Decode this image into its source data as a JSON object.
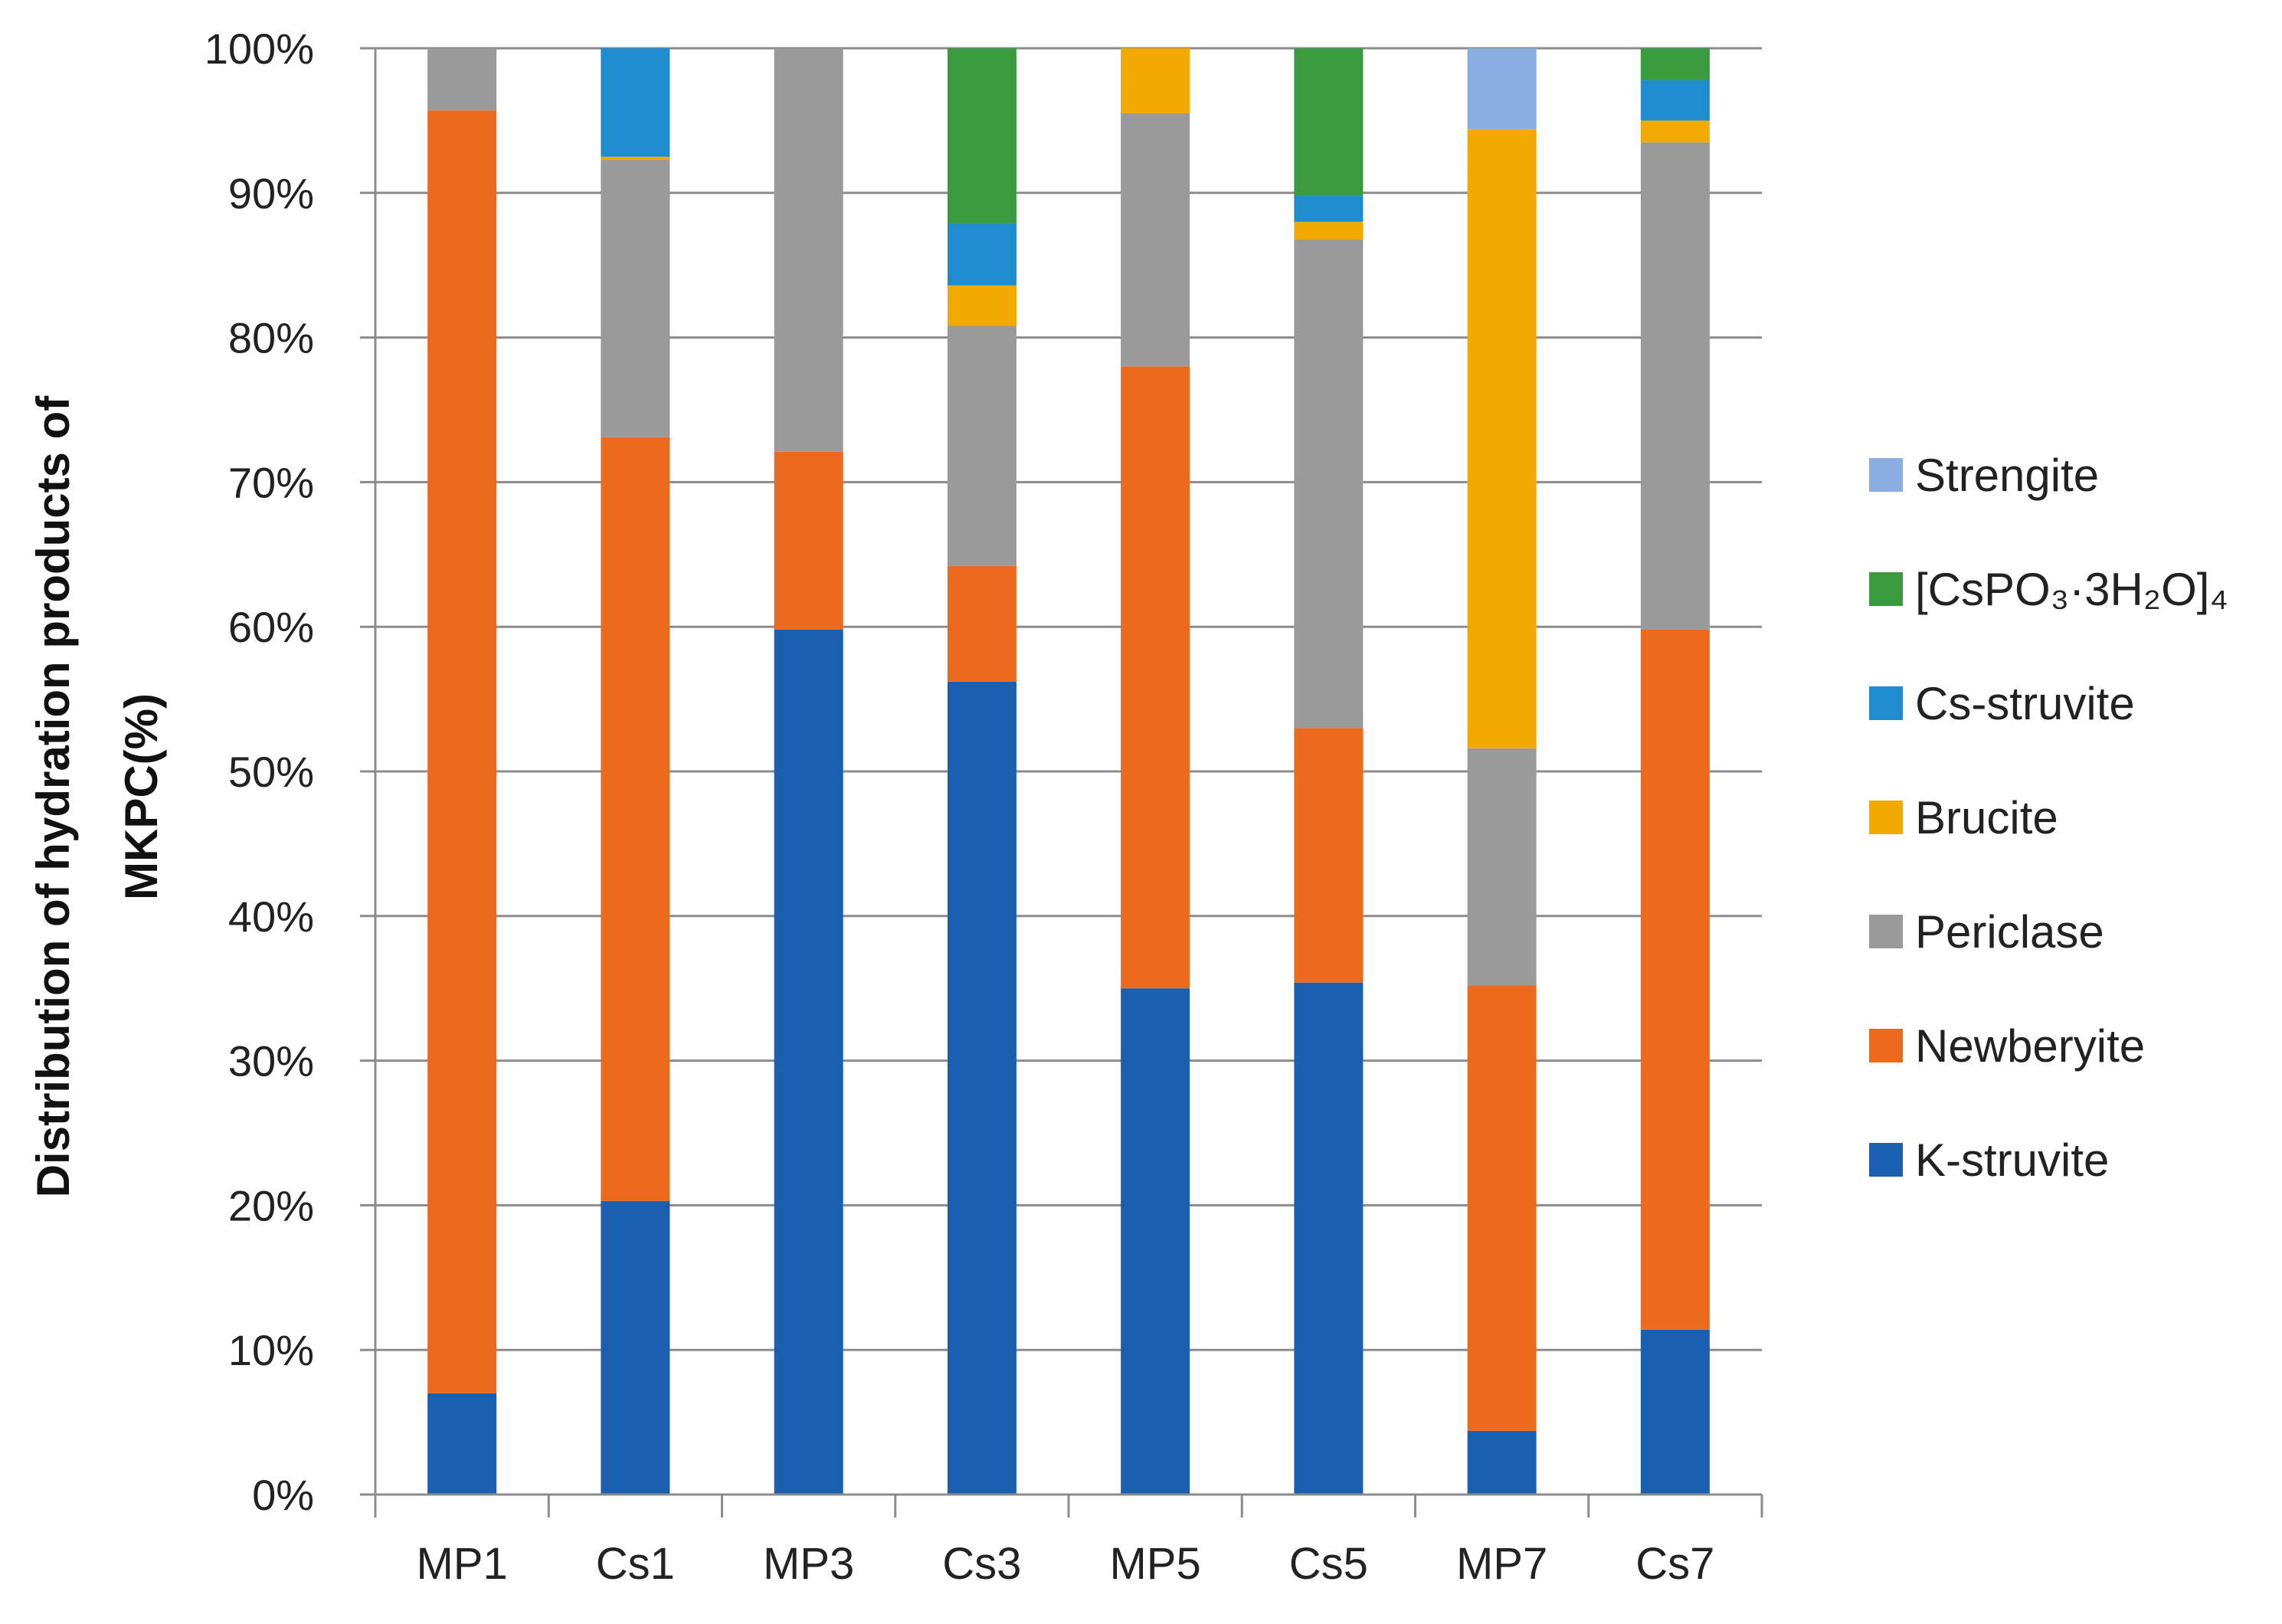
{
  "chart_data": {
    "type": "bar",
    "stacked": true,
    "title": "",
    "xlabel": "",
    "ylabel_line1": "Distribution of hydration products of",
    "ylabel_line2": "MKPC(%)",
    "ylim": [
      0,
      100
    ],
    "yticks": [
      "0%",
      "10%",
      "20%",
      "30%",
      "40%",
      "50%",
      "60%",
      "70%",
      "80%",
      "90%",
      "100%"
    ],
    "legend_position": "right",
    "categories": [
      "MP1",
      "Cs1",
      "MP3",
      "Cs3",
      "MP5",
      "Cs5",
      "MP7",
      "Cs7"
    ],
    "series": [
      {
        "name": "K-struvite",
        "color": "#1a5fb0",
        "values": [
          7,
          20.3,
          59.8,
          56.2,
          35,
          35.4,
          4.4,
          11.4
        ]
      },
      {
        "name": "Newberyite",
        "color": "#ec6a1e",
        "values": [
          88.7,
          52.8,
          12.3,
          8,
          43,
          17.6,
          30.8,
          48.4
        ]
      },
      {
        "name": "Periclase",
        "color": "#9a9a9a",
        "values": [
          4.3,
          19.2,
          27.9,
          16.6,
          17.5,
          33.8,
          16.4,
          33.7
        ]
      },
      {
        "name": "Brucite",
        "color": "#f2aa00",
        "values": [
          0,
          0.2,
          0,
          2.8,
          4.5,
          1.2,
          42.8,
          1.5
        ]
      },
      {
        "name": "Cs-struvite",
        "color": "#1f8cd0",
        "values": [
          0,
          7.5,
          0,
          4.3,
          0,
          1.8,
          0,
          2.8
        ]
      },
      {
        "name": "[CsPO₃·3H₂O]₄",
        "color": "#3a9a3e",
        "values": [
          0,
          0,
          0,
          12.1,
          0,
          10.2,
          0,
          2.2
        ]
      },
      {
        "name": "Strengite",
        "color": "#8aaee0",
        "values": [
          0,
          0,
          0,
          0,
          0,
          0,
          5.6,
          0
        ]
      }
    ]
  }
}
